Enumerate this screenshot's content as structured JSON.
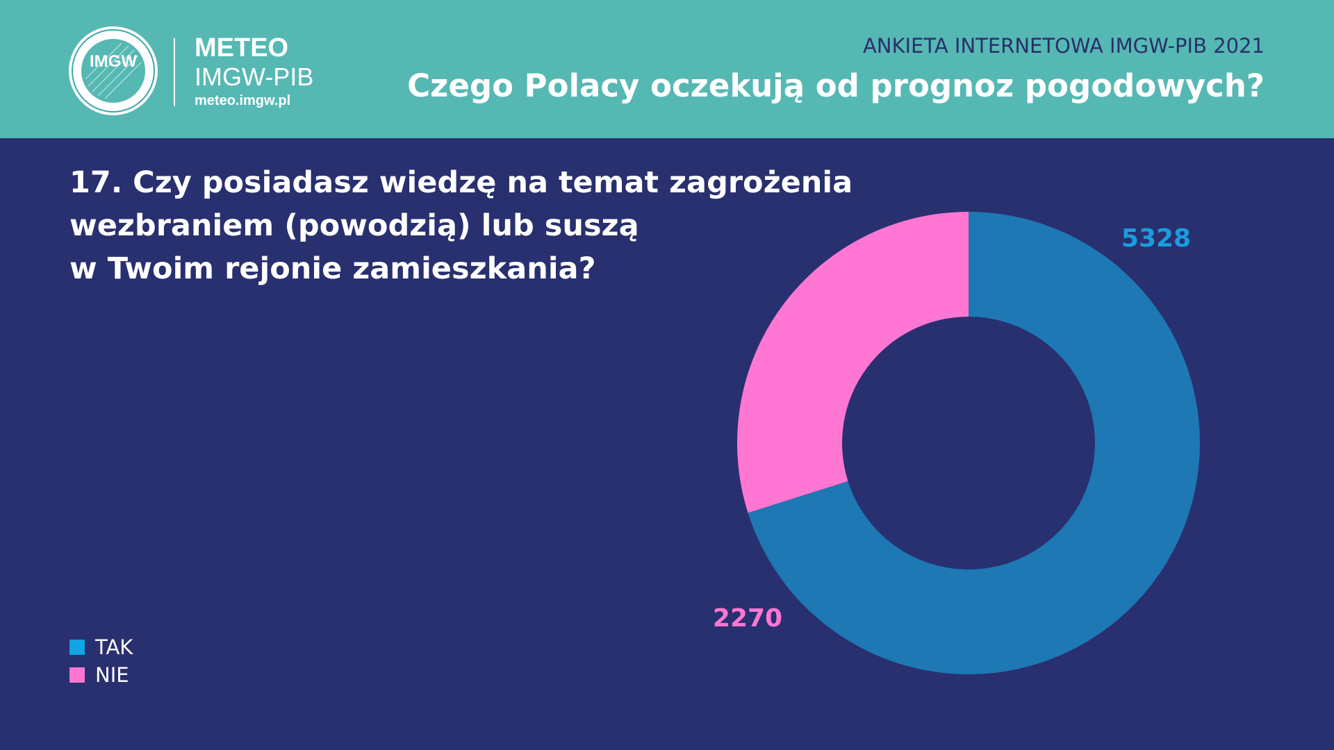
{
  "header": {
    "logo_text": "IMGW",
    "brand_line1": "METEO",
    "brand_line2": "IMGW-PIB",
    "brand_url": "meteo.imgw.pl",
    "survey_label": "ANKIETA INTERNETOWA IMGW-PIB 2021",
    "survey_title": "Czego Polacy oczekują od prognoz pogodowych?"
  },
  "question": {
    "line1": "17. Czy posiadasz wiedzę na temat zagrożenia",
    "line2": "wezbraniem (powodzią) lub suszą",
    "line3": "w Twoim rejonie zamieszkania?"
  },
  "colors": {
    "background": "#29306f",
    "header": "#56b8b3",
    "tak_slice": "#1d78b4",
    "nie_slice": "#ff77d3",
    "tak_label": "#1a9ddd",
    "tak_legend": "#11a3e3",
    "nie_label": "#ff77d3"
  },
  "chart_data": {
    "type": "pie",
    "title": "17. Czy posiadasz wiedzę na temat zagrożenia wezbraniem (powodzią) lub suszą w Twoim rejonie zamieszkania?",
    "categories": [
      "TAK",
      "NIE"
    ],
    "values": [
      5328,
      2270
    ],
    "value_labels": [
      "5328",
      "2270"
    ],
    "donut": true,
    "start_angle_deg": 270,
    "direction": "clockwise",
    "legend": [
      {
        "label": "TAK",
        "color": "#11a3e3"
      },
      {
        "label": "NIE",
        "color": "#ff77d3"
      }
    ],
    "legend_position": "bottom-left"
  }
}
